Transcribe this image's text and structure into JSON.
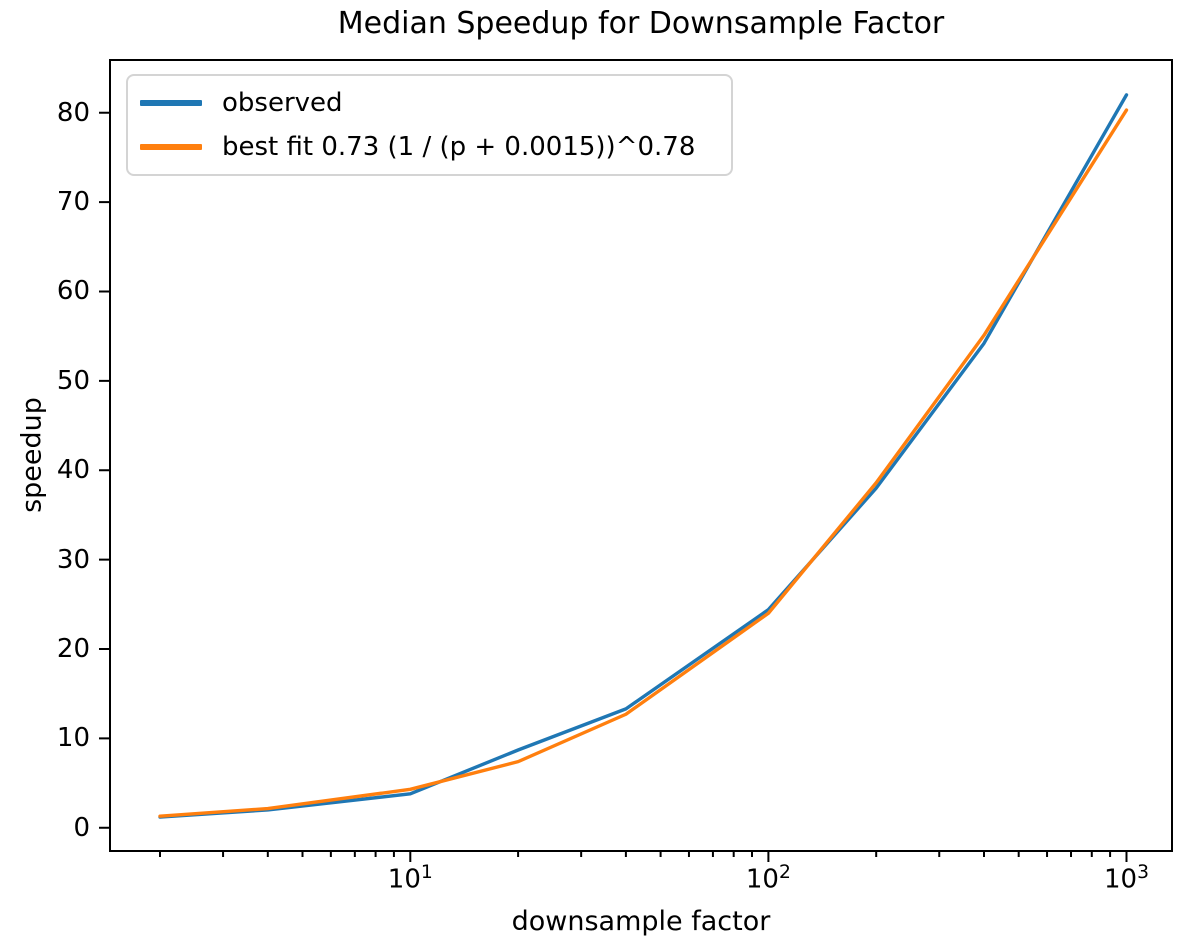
{
  "chart_data": {
    "type": "line",
    "title": "Median Speedup for Downsample Factor",
    "xlabel": "downsample factor",
    "ylabel": "speedup",
    "xscale": "log",
    "yscale": "linear",
    "grid": false,
    "legend_position": "upper left",
    "xlim": [
      1.45,
      1340
    ],
    "ylim": [
      -2.6,
      85.9
    ],
    "x": [
      2,
      4,
      10,
      20,
      40,
      100,
      200,
      400,
      1000
    ],
    "series": [
      {
        "name": "observed",
        "color": "#1f77b4",
        "values": [
          1.2,
          2.0,
          3.8,
          8.7,
          13.3,
          24.4,
          38.0,
          54.2,
          82.0
        ]
      },
      {
        "name": "best fit 0.73 (1 / (p + 0.0015))^0.78",
        "color": "#ff7f0e",
        "values": [
          1.3,
          2.15,
          4.3,
          7.4,
          12.7,
          24.0,
          38.6,
          55.1,
          80.3
        ]
      }
    ],
    "yticks": [
      0,
      10,
      20,
      30,
      40,
      50,
      60,
      70,
      80
    ],
    "xticks": [
      {
        "value": 10,
        "base": "10",
        "exp": "1"
      },
      {
        "value": 100,
        "base": "10",
        "exp": "2"
      },
      {
        "value": 1000,
        "base": "10",
        "exp": "3"
      }
    ]
  }
}
